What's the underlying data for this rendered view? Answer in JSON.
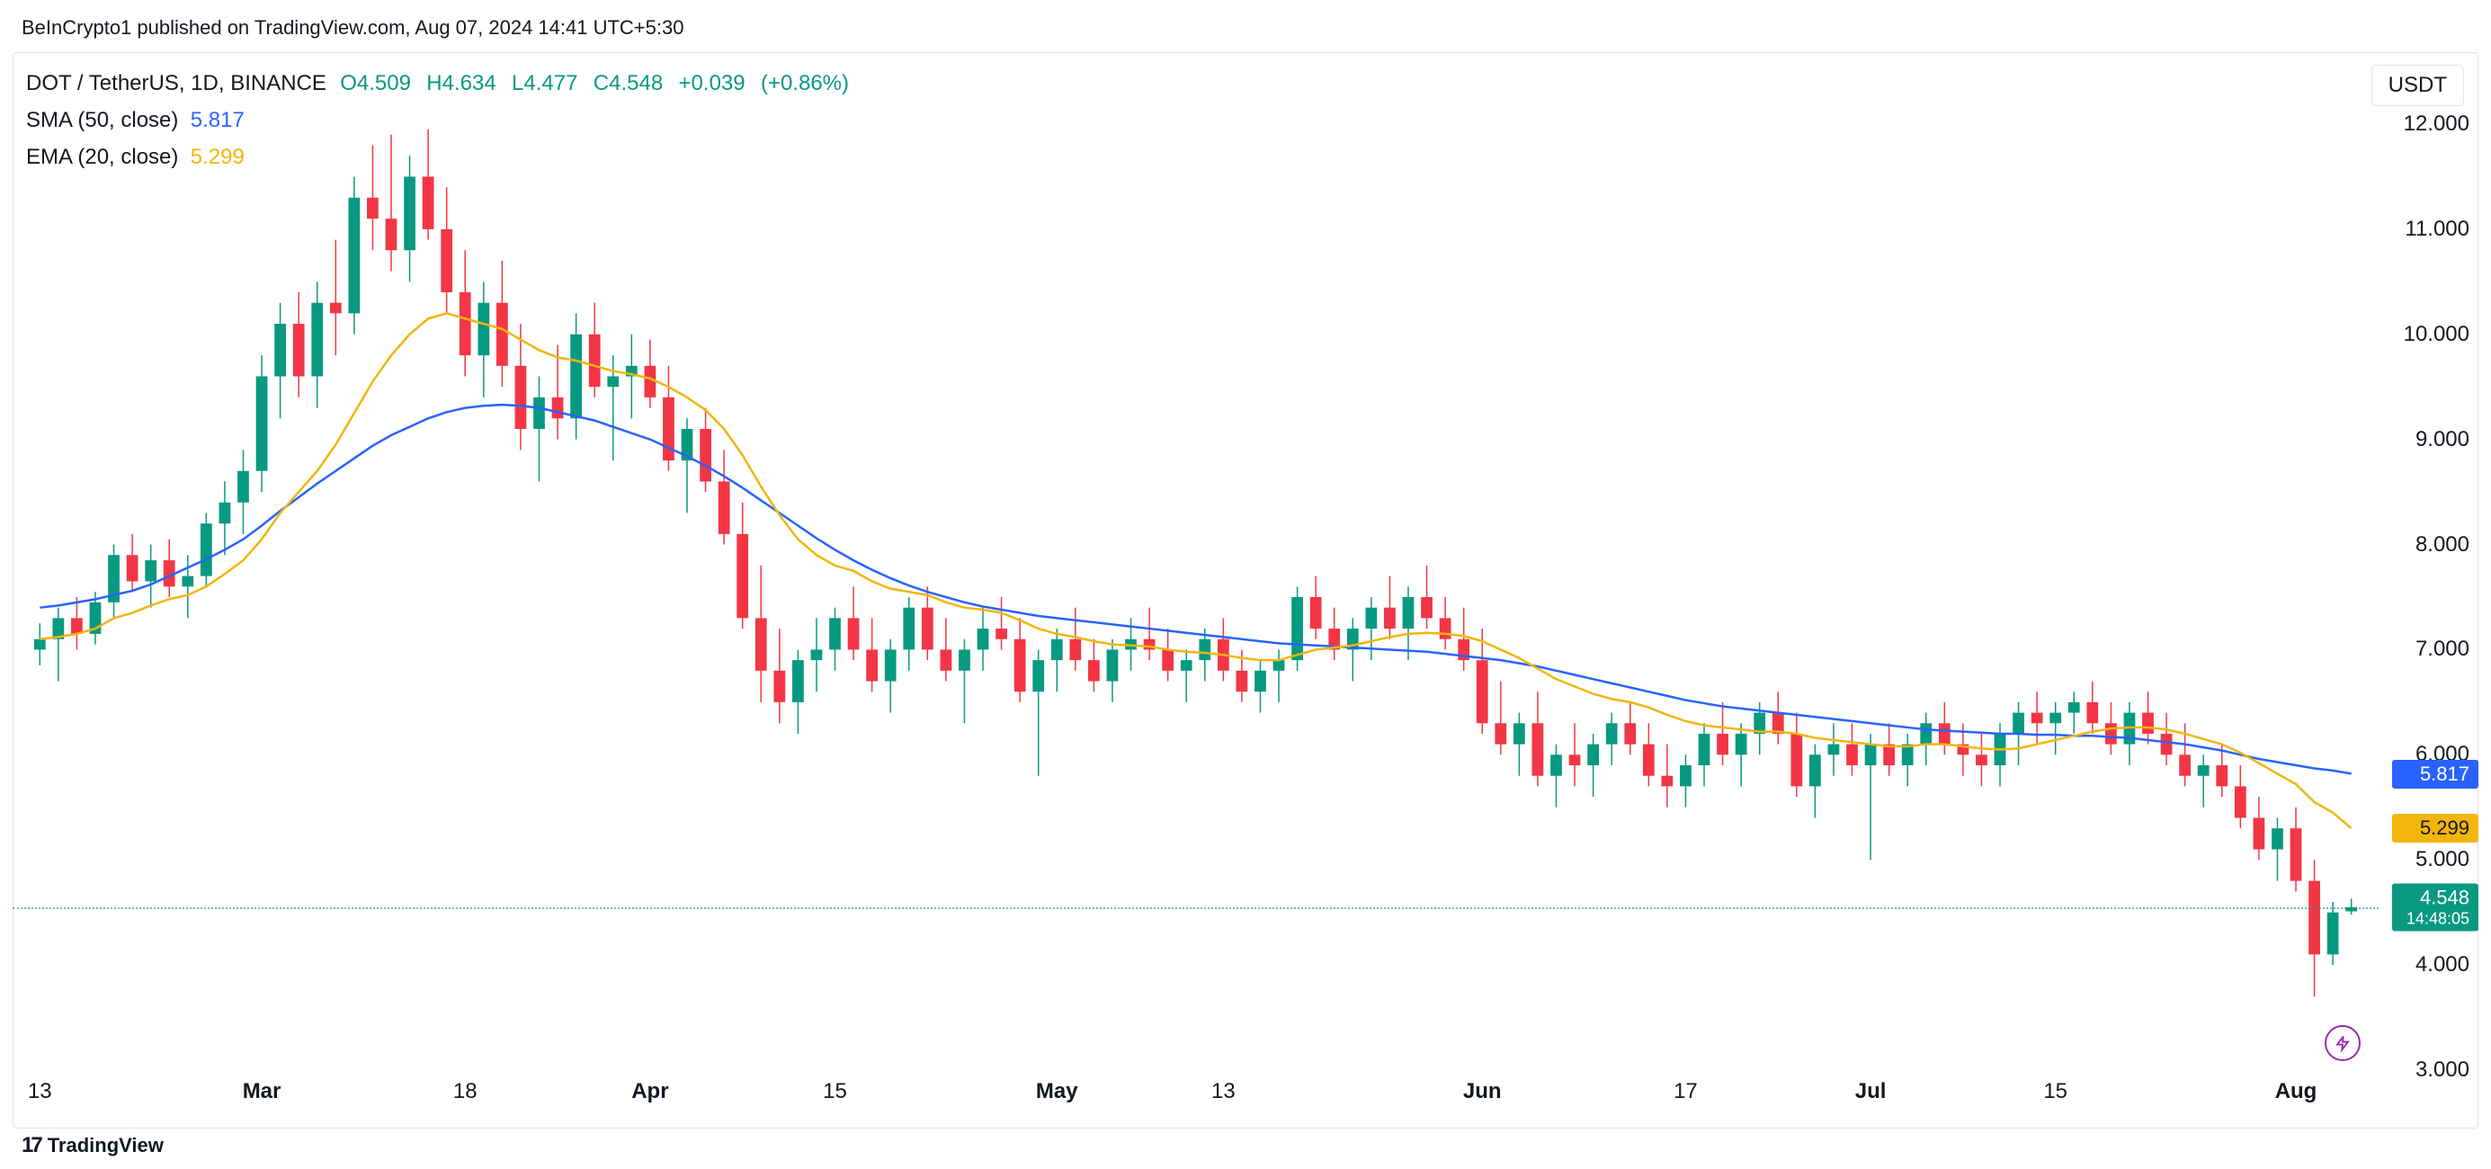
{
  "attribution": "BeInCrypto1 published on TradingView.com, Aug 07, 2024 14:41 UTC+5:30",
  "footer_brand": "TradingView",
  "header": {
    "symbol": "DOT / TetherUS, 1D, BINANCE",
    "O": "4.509",
    "H": "4.634",
    "L": "4.477",
    "C": "4.548",
    "change_abs": "+0.039",
    "change_pct": "(+0.86%)",
    "currency_badge": "USDT"
  },
  "indicators": {
    "sma": {
      "label": "SMA (50, close)",
      "value": "5.817",
      "color": "#2962ff"
    },
    "ema": {
      "label": "EMA (20, close)",
      "value": "5.299",
      "color": "#f2b50c"
    }
  },
  "price_tags": {
    "sma": "5.817",
    "ema": "5.299",
    "current": "4.548",
    "current_time": "14:48:05"
  },
  "chart": {
    "type": "candlestick",
    "background": "#ffffff",
    "up_color": "#089981",
    "down_color": "#f23645",
    "sma_color": "#2962ff",
    "ema_color": "#f2b50c",
    "y_min": 3.0,
    "y_max": 12.0,
    "y_ticks": [
      3.0,
      4.0,
      5.0,
      6.0,
      7.0,
      8.0,
      9.0,
      10.0,
      11.0,
      12.0
    ],
    "y_tick_labels": [
      "3.000",
      "4.000",
      "5.000",
      "6.000",
      "7.000",
      "8.000",
      "9.000",
      "10.000",
      "11.000",
      "12.000"
    ],
    "x_ticks": [
      {
        "idx": 0,
        "label": "13",
        "bold": false
      },
      {
        "idx": 12,
        "label": "Mar",
        "bold": true
      },
      {
        "idx": 23,
        "label": "18",
        "bold": false
      },
      {
        "idx": 33,
        "label": "Apr",
        "bold": true
      },
      {
        "idx": 43,
        "label": "15",
        "bold": false
      },
      {
        "idx": 55,
        "label": "May",
        "bold": true
      },
      {
        "idx": 64,
        "label": "13",
        "bold": false
      },
      {
        "idx": 78,
        "label": "Jun",
        "bold": true
      },
      {
        "idx": 89,
        "label": "17",
        "bold": false
      },
      {
        "idx": 99,
        "label": "Jul",
        "bold": true
      },
      {
        "idx": 109,
        "label": "15",
        "bold": false
      },
      {
        "idx": 122,
        "label": "Aug",
        "bold": true
      }
    ],
    "candles": [
      {
        "o": 7.0,
        "h": 7.25,
        "l": 6.85,
        "c": 7.1
      },
      {
        "o": 7.1,
        "h": 7.4,
        "l": 6.7,
        "c": 7.3
      },
      {
        "o": 7.3,
        "h": 7.5,
        "l": 7.0,
        "c": 7.15
      },
      {
        "o": 7.15,
        "h": 7.55,
        "l": 7.05,
        "c": 7.45
      },
      {
        "o": 7.45,
        "h": 8.0,
        "l": 7.3,
        "c": 7.9
      },
      {
        "o": 7.9,
        "h": 8.1,
        "l": 7.55,
        "c": 7.65
      },
      {
        "o": 7.65,
        "h": 8.0,
        "l": 7.4,
        "c": 7.85
      },
      {
        "o": 7.85,
        "h": 8.05,
        "l": 7.5,
        "c": 7.6
      },
      {
        "o": 7.6,
        "h": 7.9,
        "l": 7.3,
        "c": 7.7
      },
      {
        "o": 7.7,
        "h": 8.3,
        "l": 7.6,
        "c": 8.2
      },
      {
        "o": 8.2,
        "h": 8.6,
        "l": 7.9,
        "c": 8.4
      },
      {
        "o": 8.4,
        "h": 8.9,
        "l": 8.1,
        "c": 8.7
      },
      {
        "o": 8.7,
        "h": 9.8,
        "l": 8.5,
        "c": 9.6
      },
      {
        "o": 9.6,
        "h": 10.3,
        "l": 9.2,
        "c": 10.1
      },
      {
        "o": 10.1,
        "h": 10.4,
        "l": 9.4,
        "c": 9.6
      },
      {
        "o": 9.6,
        "h": 10.5,
        "l": 9.3,
        "c": 10.3
      },
      {
        "o": 10.3,
        "h": 10.9,
        "l": 9.8,
        "c": 10.2
      },
      {
        "o": 10.2,
        "h": 11.5,
        "l": 10.0,
        "c": 11.3
      },
      {
        "o": 11.3,
        "h": 11.8,
        "l": 10.8,
        "c": 11.1
      },
      {
        "o": 11.1,
        "h": 11.9,
        "l": 10.6,
        "c": 10.8
      },
      {
        "o": 10.8,
        "h": 11.7,
        "l": 10.5,
        "c": 11.5
      },
      {
        "o": 11.5,
        "h": 11.95,
        "l": 10.9,
        "c": 11.0
      },
      {
        "o": 11.0,
        "h": 11.4,
        "l": 10.2,
        "c": 10.4
      },
      {
        "o": 10.4,
        "h": 10.8,
        "l": 9.6,
        "c": 9.8
      },
      {
        "o": 9.8,
        "h": 10.5,
        "l": 9.4,
        "c": 10.3
      },
      {
        "o": 10.3,
        "h": 10.7,
        "l": 9.5,
        "c": 9.7
      },
      {
        "o": 9.7,
        "h": 10.1,
        "l": 8.9,
        "c": 9.1
      },
      {
        "o": 9.1,
        "h": 9.6,
        "l": 8.6,
        "c": 9.4
      },
      {
        "o": 9.4,
        "h": 9.9,
        "l": 9.0,
        "c": 9.2
      },
      {
        "o": 9.2,
        "h": 10.2,
        "l": 9.0,
        "c": 10.0
      },
      {
        "o": 10.0,
        "h": 10.3,
        "l": 9.4,
        "c": 9.5
      },
      {
        "o": 9.5,
        "h": 9.8,
        "l": 8.8,
        "c": 9.6
      },
      {
        "o": 9.6,
        "h": 10.0,
        "l": 9.2,
        "c": 9.7
      },
      {
        "o": 9.7,
        "h": 9.95,
        "l": 9.3,
        "c": 9.4
      },
      {
        "o": 9.4,
        "h": 9.7,
        "l": 8.7,
        "c": 8.8
      },
      {
        "o": 8.8,
        "h": 9.2,
        "l": 8.3,
        "c": 9.1
      },
      {
        "o": 9.1,
        "h": 9.3,
        "l": 8.5,
        "c": 8.6
      },
      {
        "o": 8.6,
        "h": 8.9,
        "l": 8.0,
        "c": 8.1
      },
      {
        "o": 8.1,
        "h": 8.4,
        "l": 7.2,
        "c": 7.3
      },
      {
        "o": 7.3,
        "h": 7.8,
        "l": 6.5,
        "c": 6.8
      },
      {
        "o": 6.8,
        "h": 7.2,
        "l": 6.3,
        "c": 6.5
      },
      {
        "o": 6.5,
        "h": 7.0,
        "l": 6.2,
        "c": 6.9
      },
      {
        "o": 6.9,
        "h": 7.3,
        "l": 6.6,
        "c": 7.0
      },
      {
        "o": 7.0,
        "h": 7.4,
        "l": 6.8,
        "c": 7.3
      },
      {
        "o": 7.3,
        "h": 7.6,
        "l": 6.9,
        "c": 7.0
      },
      {
        "o": 7.0,
        "h": 7.3,
        "l": 6.6,
        "c": 6.7
      },
      {
        "o": 6.7,
        "h": 7.1,
        "l": 6.4,
        "c": 7.0
      },
      {
        "o": 7.0,
        "h": 7.5,
        "l": 6.8,
        "c": 7.4
      },
      {
        "o": 7.4,
        "h": 7.6,
        "l": 6.9,
        "c": 7.0
      },
      {
        "o": 7.0,
        "h": 7.3,
        "l": 6.7,
        "c": 6.8
      },
      {
        "o": 6.8,
        "h": 7.1,
        "l": 6.3,
        "c": 7.0
      },
      {
        "o": 7.0,
        "h": 7.4,
        "l": 6.8,
        "c": 7.2
      },
      {
        "o": 7.2,
        "h": 7.5,
        "l": 7.0,
        "c": 7.1
      },
      {
        "o": 7.1,
        "h": 7.3,
        "l": 6.5,
        "c": 6.6
      },
      {
        "o": 6.6,
        "h": 7.0,
        "l": 5.8,
        "c": 6.9
      },
      {
        "o": 6.9,
        "h": 7.2,
        "l": 6.6,
        "c": 7.1
      },
      {
        "o": 7.1,
        "h": 7.4,
        "l": 6.8,
        "c": 6.9
      },
      {
        "o": 6.9,
        "h": 7.1,
        "l": 6.6,
        "c": 6.7
      },
      {
        "o": 6.7,
        "h": 7.1,
        "l": 6.5,
        "c": 7.0
      },
      {
        "o": 7.0,
        "h": 7.3,
        "l": 6.8,
        "c": 7.1
      },
      {
        "o": 7.1,
        "h": 7.4,
        "l": 6.9,
        "c": 7.0
      },
      {
        "o": 7.0,
        "h": 7.2,
        "l": 6.7,
        "c": 6.8
      },
      {
        "o": 6.8,
        "h": 7.0,
        "l": 6.5,
        "c": 6.9
      },
      {
        "o": 6.9,
        "h": 7.2,
        "l": 6.7,
        "c": 7.1
      },
      {
        "o": 7.1,
        "h": 7.3,
        "l": 6.7,
        "c": 6.8
      },
      {
        "o": 6.8,
        "h": 7.0,
        "l": 6.5,
        "c": 6.6
      },
      {
        "o": 6.6,
        "h": 6.9,
        "l": 6.4,
        "c": 6.8
      },
      {
        "o": 6.8,
        "h": 7.0,
        "l": 6.5,
        "c": 6.9
      },
      {
        "o": 6.9,
        "h": 7.6,
        "l": 6.8,
        "c": 7.5
      },
      {
        "o": 7.5,
        "h": 7.7,
        "l": 7.1,
        "c": 7.2
      },
      {
        "o": 7.2,
        "h": 7.4,
        "l": 6.9,
        "c": 7.0
      },
      {
        "o": 7.0,
        "h": 7.3,
        "l": 6.7,
        "c": 7.2
      },
      {
        "o": 7.2,
        "h": 7.5,
        "l": 6.9,
        "c": 7.4
      },
      {
        "o": 7.4,
        "h": 7.7,
        "l": 7.1,
        "c": 7.2
      },
      {
        "o": 7.2,
        "h": 7.6,
        "l": 6.9,
        "c": 7.5
      },
      {
        "o": 7.5,
        "h": 7.8,
        "l": 7.2,
        "c": 7.3
      },
      {
        "o": 7.3,
        "h": 7.5,
        "l": 7.0,
        "c": 7.1
      },
      {
        "o": 7.1,
        "h": 7.4,
        "l": 6.8,
        "c": 6.9
      },
      {
        "o": 6.9,
        "h": 7.2,
        "l": 6.2,
        "c": 6.3
      },
      {
        "o": 6.3,
        "h": 6.7,
        "l": 6.0,
        "c": 6.1
      },
      {
        "o": 6.1,
        "h": 6.4,
        "l": 5.8,
        "c": 6.3
      },
      {
        "o": 6.3,
        "h": 6.6,
        "l": 5.7,
        "c": 5.8
      },
      {
        "o": 5.8,
        "h": 6.1,
        "l": 5.5,
        "c": 6.0
      },
      {
        "o": 6.0,
        "h": 6.3,
        "l": 5.7,
        "c": 5.9
      },
      {
        "o": 5.9,
        "h": 6.2,
        "l": 5.6,
        "c": 6.1
      },
      {
        "o": 6.1,
        "h": 6.4,
        "l": 5.9,
        "c": 6.3
      },
      {
        "o": 6.3,
        "h": 6.5,
        "l": 6.0,
        "c": 6.1
      },
      {
        "o": 6.1,
        "h": 6.3,
        "l": 5.7,
        "c": 5.8
      },
      {
        "o": 5.8,
        "h": 6.1,
        "l": 5.5,
        "c": 5.7
      },
      {
        "o": 5.7,
        "h": 6.0,
        "l": 5.5,
        "c": 5.9
      },
      {
        "o": 5.9,
        "h": 6.3,
        "l": 5.7,
        "c": 6.2
      },
      {
        "o": 6.2,
        "h": 6.5,
        "l": 5.9,
        "c": 6.0
      },
      {
        "o": 6.0,
        "h": 6.3,
        "l": 5.7,
        "c": 6.2
      },
      {
        "o": 6.2,
        "h": 6.5,
        "l": 6.0,
        "c": 6.4
      },
      {
        "o": 6.4,
        "h": 6.6,
        "l": 6.1,
        "c": 6.2
      },
      {
        "o": 6.2,
        "h": 6.4,
        "l": 5.6,
        "c": 5.7
      },
      {
        "o": 5.7,
        "h": 6.1,
        "l": 5.4,
        "c": 6.0
      },
      {
        "o": 6.0,
        "h": 6.3,
        "l": 5.8,
        "c": 6.1
      },
      {
        "o": 6.1,
        "h": 6.3,
        "l": 5.8,
        "c": 5.9
      },
      {
        "o": 5.9,
        "h": 6.2,
        "l": 5.0,
        "c": 6.1
      },
      {
        "o": 6.1,
        "h": 6.3,
        "l": 5.8,
        "c": 5.9
      },
      {
        "o": 5.9,
        "h": 6.2,
        "l": 5.7,
        "c": 6.1
      },
      {
        "o": 6.1,
        "h": 6.4,
        "l": 5.9,
        "c": 6.3
      },
      {
        "o": 6.3,
        "h": 6.5,
        "l": 6.0,
        "c": 6.1
      },
      {
        "o": 6.1,
        "h": 6.3,
        "l": 5.8,
        "c": 6.0
      },
      {
        "o": 6.0,
        "h": 6.2,
        "l": 5.7,
        "c": 5.9
      },
      {
        "o": 5.9,
        "h": 6.3,
        "l": 5.7,
        "c": 6.2
      },
      {
        "o": 6.2,
        "h": 6.5,
        "l": 5.9,
        "c": 6.4
      },
      {
        "o": 6.4,
        "h": 6.6,
        "l": 6.1,
        "c": 6.3
      },
      {
        "o": 6.3,
        "h": 6.5,
        "l": 6.0,
        "c": 6.4
      },
      {
        "o": 6.4,
        "h": 6.6,
        "l": 6.2,
        "c": 6.5
      },
      {
        "o": 6.5,
        "h": 6.7,
        "l": 6.2,
        "c": 6.3
      },
      {
        "o": 6.3,
        "h": 6.5,
        "l": 6.0,
        "c": 6.1
      },
      {
        "o": 6.1,
        "h": 6.5,
        "l": 5.9,
        "c": 6.4
      },
      {
        "o": 6.4,
        "h": 6.6,
        "l": 6.1,
        "c": 6.2
      },
      {
        "o": 6.2,
        "h": 6.4,
        "l": 5.9,
        "c": 6.0
      },
      {
        "o": 6.0,
        "h": 6.3,
        "l": 5.7,
        "c": 5.8
      },
      {
        "o": 5.8,
        "h": 6.0,
        "l": 5.5,
        "c": 5.9
      },
      {
        "o": 5.9,
        "h": 6.1,
        "l": 5.6,
        "c": 5.7
      },
      {
        "o": 5.7,
        "h": 5.9,
        "l": 5.3,
        "c": 5.4
      },
      {
        "o": 5.4,
        "h": 5.6,
        "l": 5.0,
        "c": 5.1
      },
      {
        "o": 5.1,
        "h": 5.4,
        "l": 4.8,
        "c": 5.3
      },
      {
        "o": 5.3,
        "h": 5.5,
        "l": 4.7,
        "c": 4.8
      },
      {
        "o": 4.8,
        "h": 5.0,
        "l": 3.7,
        "c": 4.1
      },
      {
        "o": 4.1,
        "h": 4.6,
        "l": 4.0,
        "c": 4.5
      },
      {
        "o": 4.51,
        "h": 4.63,
        "l": 4.48,
        "c": 4.55
      }
    ],
    "sma50": [
      7.4,
      7.42,
      7.45,
      7.48,
      7.52,
      7.56,
      7.62,
      7.7,
      7.78,
      7.86,
      7.95,
      8.05,
      8.18,
      8.32,
      8.45,
      8.58,
      8.7,
      8.82,
      8.94,
      9.04,
      9.12,
      9.2,
      9.26,
      9.3,
      9.32,
      9.33,
      9.32,
      9.3,
      9.26,
      9.22,
      9.18,
      9.12,
      9.06,
      9.0,
      8.92,
      8.84,
      8.75,
      8.65,
      8.54,
      8.42,
      8.3,
      8.18,
      8.06,
      7.95,
      7.85,
      7.76,
      7.68,
      7.61,
      7.55,
      7.5,
      7.45,
      7.41,
      7.38,
      7.35,
      7.32,
      7.3,
      7.28,
      7.26,
      7.24,
      7.22,
      7.2,
      7.18,
      7.16,
      7.14,
      7.12,
      7.1,
      7.08,
      7.06,
      7.05,
      7.04,
      7.03,
      7.02,
      7.01,
      7.0,
      6.99,
      6.98,
      6.96,
      6.94,
      6.92,
      6.9,
      6.87,
      6.84,
      6.8,
      6.76,
      6.72,
      6.68,
      6.64,
      6.6,
      6.56,
      6.52,
      6.49,
      6.46,
      6.44,
      6.42,
      6.4,
      6.38,
      6.36,
      6.34,
      6.32,
      6.3,
      6.28,
      6.26,
      6.24,
      6.23,
      6.22,
      6.21,
      6.2,
      6.2,
      6.19,
      6.19,
      6.18,
      6.18,
      6.17,
      6.16,
      6.14,
      6.12,
      6.1,
      6.07,
      6.04,
      6.0,
      5.96,
      5.93,
      5.9,
      5.87,
      5.85,
      5.82
    ],
    "ema20": [
      7.1,
      7.12,
      7.15,
      7.2,
      7.3,
      7.35,
      7.42,
      7.48,
      7.52,
      7.6,
      7.72,
      7.85,
      8.05,
      8.3,
      8.5,
      8.7,
      8.95,
      9.25,
      9.55,
      9.8,
      10.0,
      10.15,
      10.2,
      10.15,
      10.1,
      10.05,
      9.95,
      9.85,
      9.78,
      9.75,
      9.7,
      9.65,
      9.62,
      9.58,
      9.5,
      9.4,
      9.28,
      9.1,
      8.85,
      8.55,
      8.28,
      8.05,
      7.9,
      7.8,
      7.75,
      7.65,
      7.58,
      7.55,
      7.52,
      7.45,
      7.4,
      7.38,
      7.35,
      7.28,
      7.2,
      7.15,
      7.12,
      7.08,
      7.05,
      7.04,
      7.03,
      7.0,
      6.98,
      6.97,
      6.95,
      6.92,
      6.9,
      6.9,
      6.95,
      7.0,
      7.02,
      7.04,
      7.08,
      7.12,
      7.15,
      7.16,
      7.15,
      7.13,
      7.08,
      7.0,
      6.92,
      6.82,
      6.72,
      6.65,
      6.58,
      6.53,
      6.5,
      6.45,
      6.38,
      6.32,
      6.28,
      6.26,
      6.24,
      6.22,
      6.22,
      6.2,
      6.16,
      6.14,
      6.12,
      6.1,
      6.08,
      6.08,
      6.1,
      6.1,
      6.08,
      6.06,
      6.05,
      6.06,
      6.1,
      6.14,
      6.18,
      6.22,
      6.25,
      6.26,
      6.26,
      6.24,
      6.2,
      6.15,
      6.1,
      6.02,
      5.92,
      5.82,
      5.72,
      5.55,
      5.45,
      5.3
    ]
  }
}
